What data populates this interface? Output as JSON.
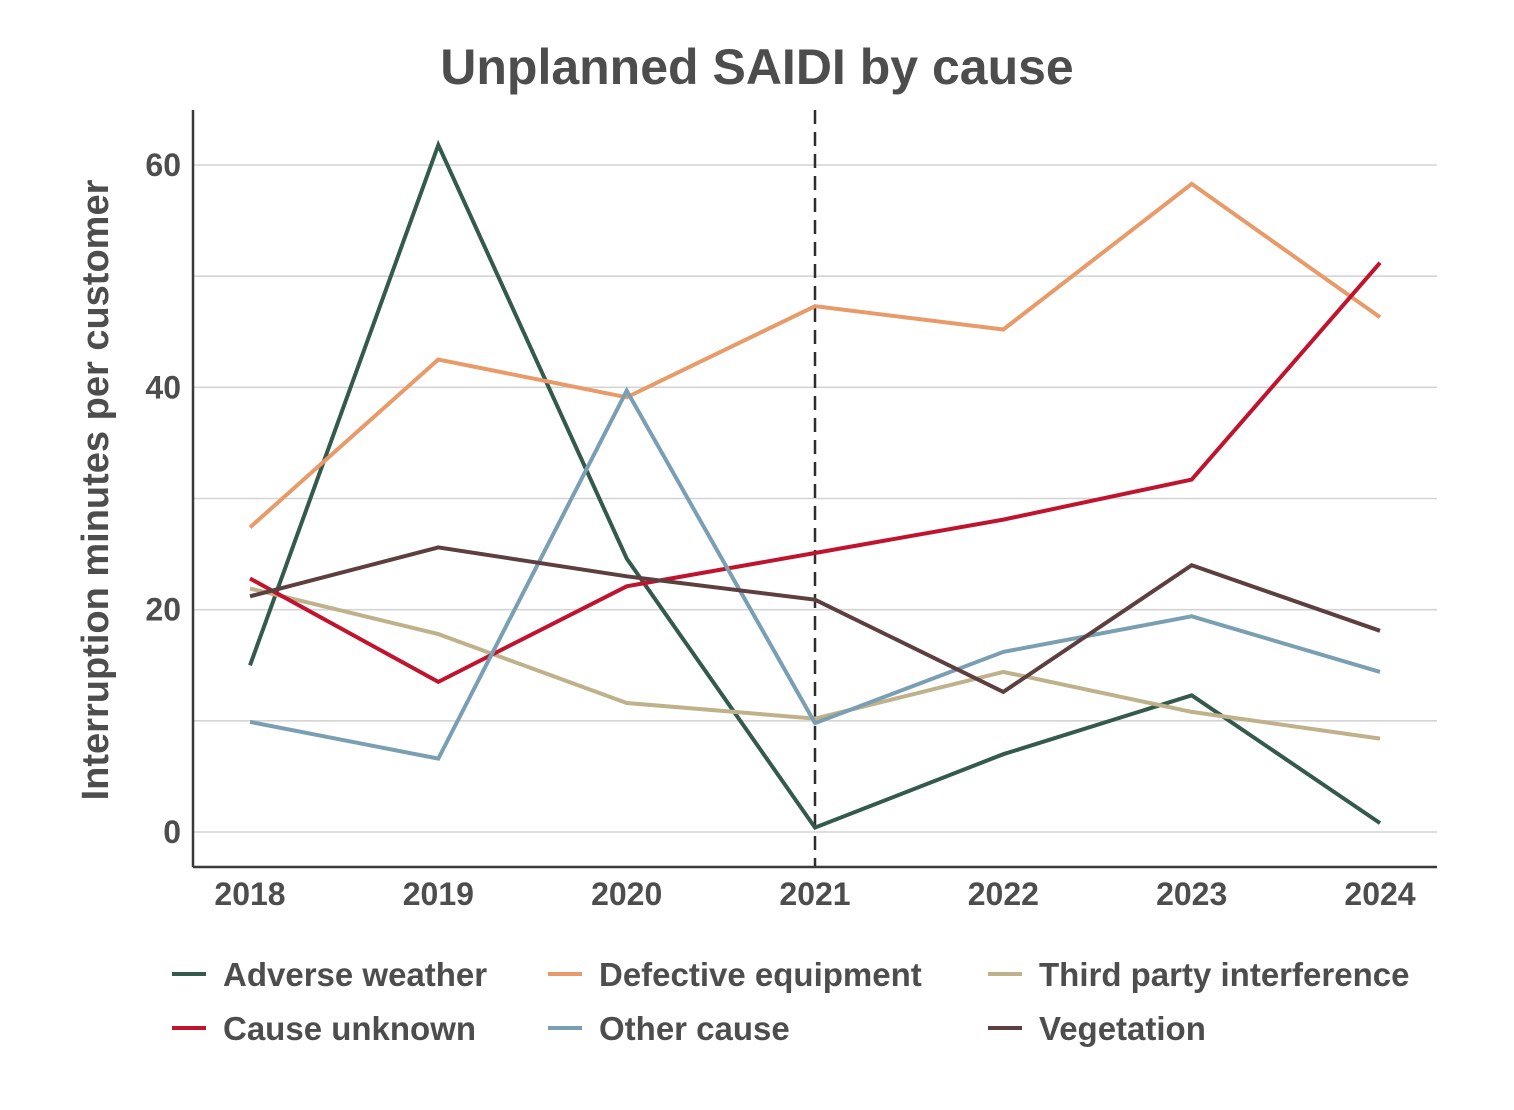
{
  "chart_data": {
    "type": "line",
    "title": "Unplanned SAIDI by cause",
    "xlabel": "",
    "ylabel": "Interruption minutes per customer",
    "x": [
      "2018",
      "2019",
      "2020",
      "2021",
      "2022",
      "2023",
      "2024"
    ],
    "ylim": [
      -3,
      65
    ],
    "yticks": [
      0,
      20,
      40,
      60
    ],
    "grid_values": [
      0,
      10,
      20,
      30,
      40,
      50,
      60
    ],
    "reference_line_x": "2021",
    "reference_line_style": "dashed",
    "grid": true,
    "legend_placement": "bottom",
    "series": [
      {
        "name": "Adverse weather",
        "color": "#345a4c",
        "values": [
          15.0,
          61.8,
          24.6,
          0.4,
          7.0,
          12.3,
          0.8
        ]
      },
      {
        "name": "Defective equipment",
        "color": "#e89a68",
        "values": [
          27.4,
          42.5,
          39.1,
          47.3,
          45.2,
          58.3,
          46.3
        ]
      },
      {
        "name": "Third party interference",
        "color": "#bfb28a",
        "values": [
          21.9,
          17.8,
          11.6,
          10.2,
          14.4,
          10.8,
          8.4
        ]
      },
      {
        "name": "Cause unknown",
        "color": "#c0142e",
        "values": [
          22.8,
          13.5,
          22.1,
          25.1,
          28.1,
          31.7,
          51.2
        ]
      },
      {
        "name": "Other cause",
        "color": "#7a9fb3",
        "values": [
          9.9,
          6.6,
          39.7,
          9.8,
          16.2,
          19.4,
          14.4
        ]
      },
      {
        "name": "Vegetation",
        "color": "#5e3f3f",
        "values": [
          21.2,
          25.6,
          23.0,
          20.9,
          12.6,
          24.0,
          18.1
        ]
      }
    ]
  }
}
